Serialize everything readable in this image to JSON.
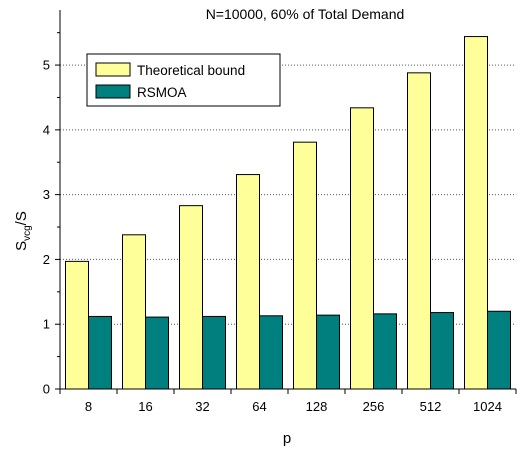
{
  "chart_data": {
    "type": "bar",
    "title": "N=10000, 60% of Total Demand",
    "xlabel": "p",
    "ylabel": {
      "main": "S",
      "sub": "vcg",
      "rest": "/S"
    },
    "categories": [
      "8",
      "16",
      "32",
      "64",
      "128",
      "256",
      "512",
      "1024"
    ],
    "series": [
      {
        "name": "Theoretical bound",
        "color": "#ffff99",
        "values": [
          1.97,
          2.38,
          2.83,
          3.31,
          3.81,
          4.34,
          4.88,
          5.44
        ]
      },
      {
        "name": "RSMOA",
        "color": "#007f7f",
        "values": [
          1.12,
          1.11,
          1.12,
          1.13,
          1.14,
          1.16,
          1.18,
          1.2
        ]
      }
    ],
    "ylim": [
      0,
      5.85
    ],
    "yticks": [
      0,
      1,
      2,
      3,
      4,
      5
    ],
    "grid": "horizontal-dotted",
    "legend_position": "top-left"
  }
}
